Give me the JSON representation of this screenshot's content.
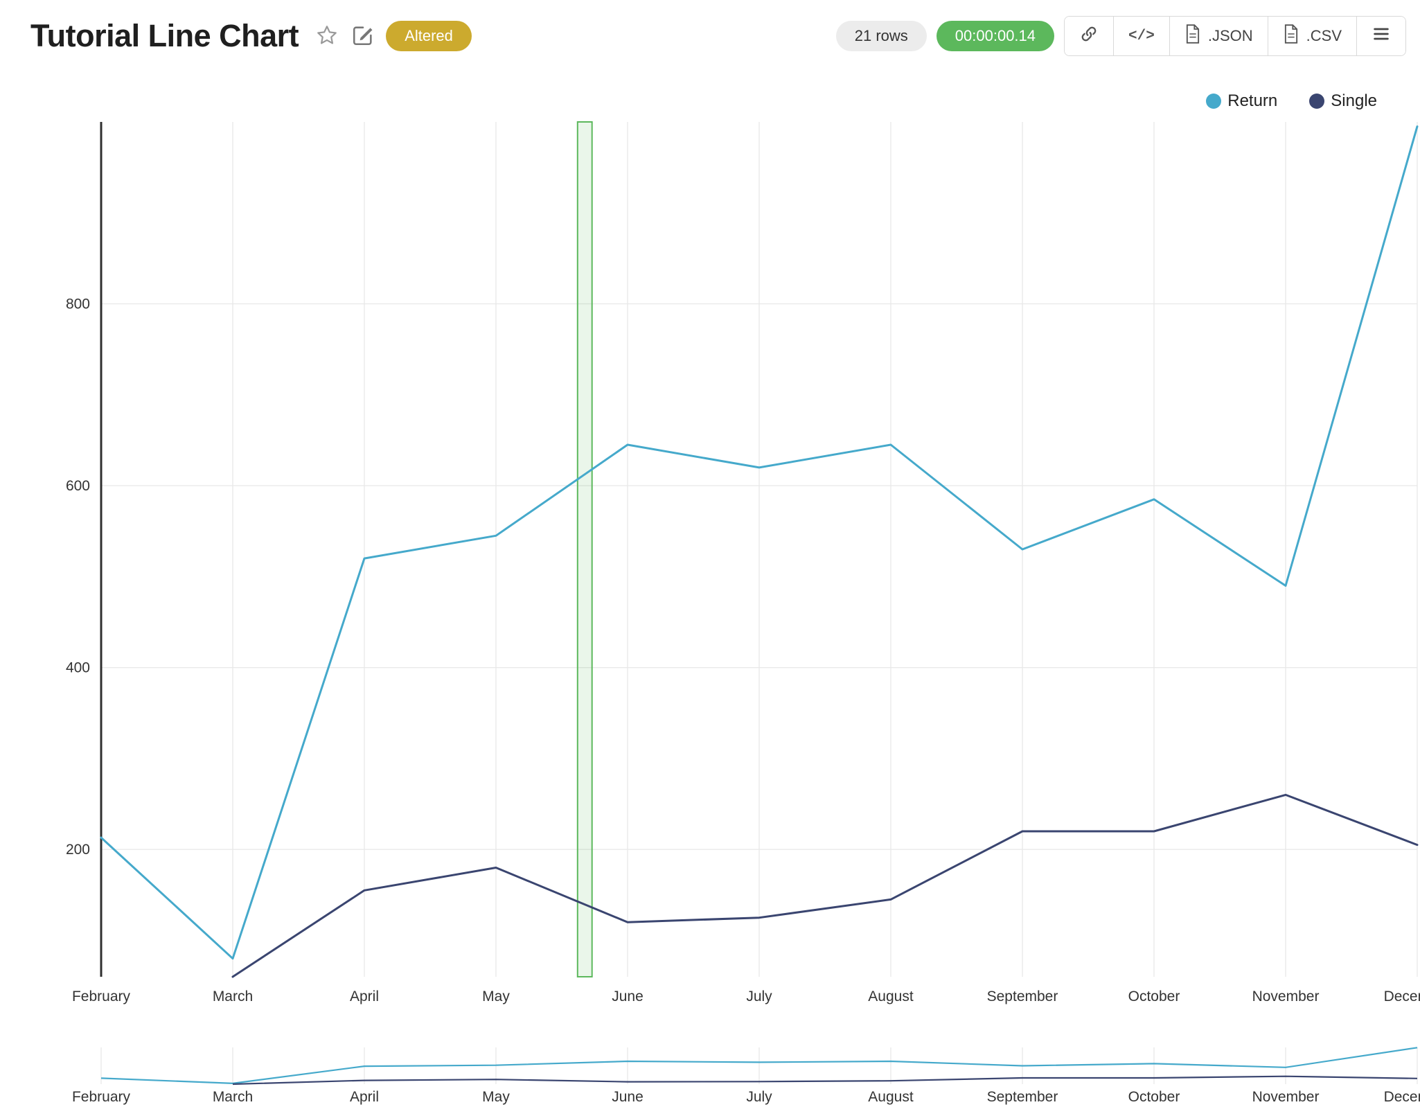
{
  "header": {
    "title": "Tutorial Line Chart",
    "altered_badge": "Altered",
    "rows_label": "21 rows",
    "timer": "00:00:00.14",
    "code_glyph": "</>",
    "export_json_label": ".JSON",
    "export_csv_label": ".CSV"
  },
  "colors": {
    "altered_badge": "#ccaa2e",
    "timer_pill": "#5cb85c",
    "selection_band": "#5cb85c",
    "grid": "#e9e9e9",
    "axis": "#2f2f2f"
  },
  "chart_data": {
    "type": "line",
    "title": "Tutorial Line Chart",
    "categories": [
      "February",
      "March",
      "April",
      "May",
      "June",
      "July",
      "August",
      "September",
      "October",
      "November",
      "December"
    ],
    "series": [
      {
        "name": "Return",
        "color": "#45a9cb",
        "values": [
          213,
          80,
          520,
          545,
          645,
          620,
          645,
          530,
          585,
          490,
          995
        ]
      },
      {
        "name": "Single",
        "color": "#3a4570",
        "values": [
          null,
          60,
          155,
          180,
          120,
          125,
          145,
          220,
          220,
          260,
          205
        ]
      }
    ],
    "xlabel": "",
    "ylabel": "",
    "ylim": [
      60,
      1000
    ],
    "yticks": [
      200,
      400,
      600,
      800
    ],
    "grid": true,
    "legend_position": "top-right",
    "selection_band": {
      "x0_index": 3.62,
      "x1_index": 3.73
    },
    "minimap": true
  }
}
